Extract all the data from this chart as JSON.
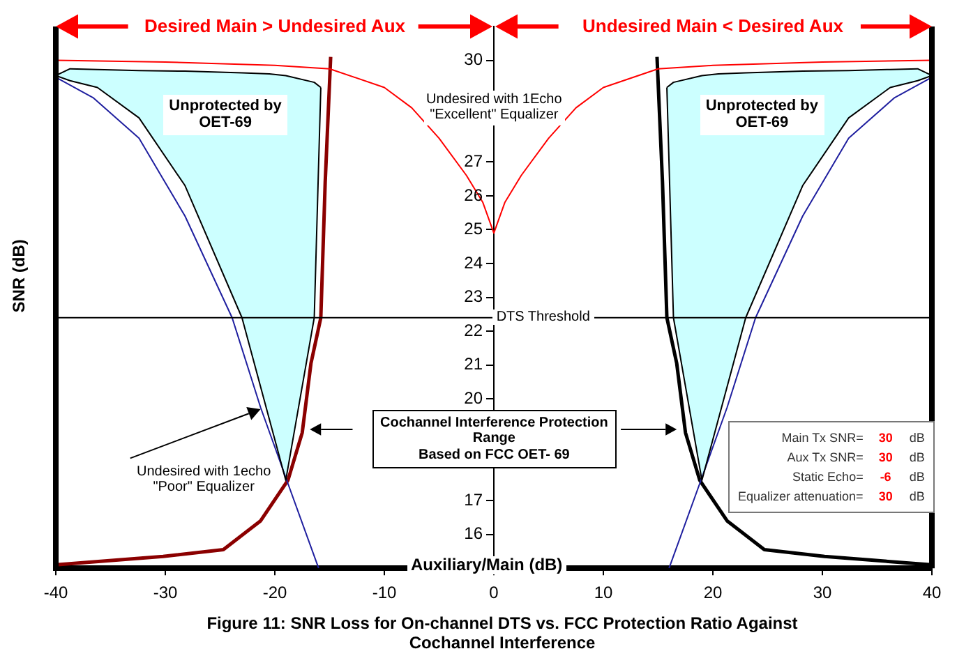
{
  "chart_data": {
    "type": "line",
    "title": "Figure 11: SNR Loss for On-channel DTS vs. FCC Protection Ratio Against\nCochannel Interference",
    "xlabel": "Auxiliary/Main  (dB)",
    "ylabel": "SNR (dB)",
    "xlim": [
      -40,
      40
    ],
    "xticks": [
      -40,
      -30,
      -20,
      -10,
      0,
      10,
      20,
      30,
      40
    ],
    "ylim": [
      15,
      31
    ],
    "yticks": [
      16,
      17,
      20,
      21,
      22,
      23,
      24,
      25,
      26,
      27,
      30
    ],
    "legend": false,
    "series": [
      {
        "color": "#ff0000",
        "x": [
          -40,
          -30,
          -20,
          -15,
          -10,
          -7.5,
          -5,
          -2.5,
          -1,
          0,
          1,
          2.5,
          5,
          7.5,
          10,
          15,
          20,
          30,
          40
        ],
        "values": [
          30,
          29.95,
          29.85,
          29.75,
          29.2,
          28.6,
          27.7,
          26.6,
          25.8,
          24.9,
          25.8,
          26.6,
          27.7,
          28.6,
          29.2,
          29.75,
          29.85,
          29.95,
          30
        ]
      },
      {
        "color": "#000000",
        "x": [
          -40,
          -38.7,
          -36.2,
          -32.4,
          -28.2,
          -23,
          -20.5,
          -19,
          -16.4,
          -15.8
        ],
        "values": [
          29.55,
          29.4,
          29.2,
          28.3,
          26.3,
          22.4,
          19.4,
          17.6,
          22.4,
          29.2
        ]
      },
      {
        "type": "area",
        "color": "#ccffff",
        "x": [
          -40,
          -38.7,
          -36.2,
          -32.4,
          -28.2,
          -23,
          -20.5,
          -19,
          -16.4,
          -15.8
        ],
        "values": [
          29.55,
          29.75,
          29.73,
          29.7,
          29.68,
          29.63,
          29.6,
          29.55,
          29.35,
          29.2
        ]
      },
      {
        "color": "#000000",
        "x": [
          15.8,
          16.4,
          19,
          20.5,
          23,
          28.2,
          32.4,
          36.2,
          38.7,
          40
        ],
        "values": [
          29.2,
          22.4,
          17.6,
          19.4,
          22.4,
          26.3,
          28.3,
          29.2,
          29.4,
          29.55
        ]
      },
      {
        "type": "area",
        "color": "#ccffff",
        "x": [
          15.8,
          16.4,
          19,
          20.5,
          23,
          28.2,
          32.4,
          36.2,
          38.7,
          40
        ],
        "values": [
          29.2,
          29.35,
          29.55,
          29.6,
          29.63,
          29.68,
          29.7,
          29.73,
          29.75,
          29.55
        ]
      },
      {
        "color": "#1f1f9f",
        "x": [
          -40,
          -36.6,
          -32.4,
          -28.2,
          -23.9,
          -21.3,
          -18.8,
          -16
        ],
        "values": [
          29.5,
          28.9,
          27.7,
          25.4,
          22.4,
          19.75,
          17.5,
          15
        ]
      },
      {
        "color": "#1f1f9f",
        "x": [
          16,
          18.8,
          21.3,
          23.9,
          28.2,
          32.4,
          36.6,
          40
        ],
        "values": [
          15,
          17.5,
          19.75,
          22.4,
          25.4,
          27.7,
          28.9,
          29.5
        ]
      },
      {
        "color": "#8b0000",
        "x": [
          -40,
          -30.2,
          -24.7,
          -21.3,
          -18.8,
          -17.5,
          -16.7,
          -15.8,
          -15.4,
          -14.9
        ],
        "values": [
          15.1,
          15.35,
          15.55,
          16.4,
          17.6,
          19,
          21.05,
          22.4,
          26.4,
          30.1
        ]
      },
      {
        "color": "#000000",
        "x": [
          14.9,
          15.4,
          15.8,
          16.7,
          17.5,
          18.8,
          21.3,
          24.7,
          30.2,
          40
        ],
        "values": [
          30.1,
          26.4,
          22.4,
          21.05,
          19,
          17.6,
          16.4,
          15.55,
          15.35,
          15.1
        ]
      }
    ],
    "ref_lines": [
      {
        "axis": "y",
        "value": 22.4,
        "label": "DTS Threshold",
        "color": "#000000"
      }
    ],
    "annotations": [
      "Desired Main > Undesired Aux",
      "Undesired Main < Desired Aux",
      "Unprotected by\nOET-69",
      "Unprotected by\nOET-69",
      "Undesired with 1Echo\n\"Excellent\" Equalizer",
      "Undesired with 1echo\n\"Poor\" Equalizer",
      "Cochannel Interference Protection\nRange\nBased on FCC OET- 69",
      "Main Tx SNR= 30 dB",
      "Aux Tx SNR= 30 dB",
      "Static Echo= -6 dB",
      "Equalizer attenuation= 30 dB"
    ]
  }
}
